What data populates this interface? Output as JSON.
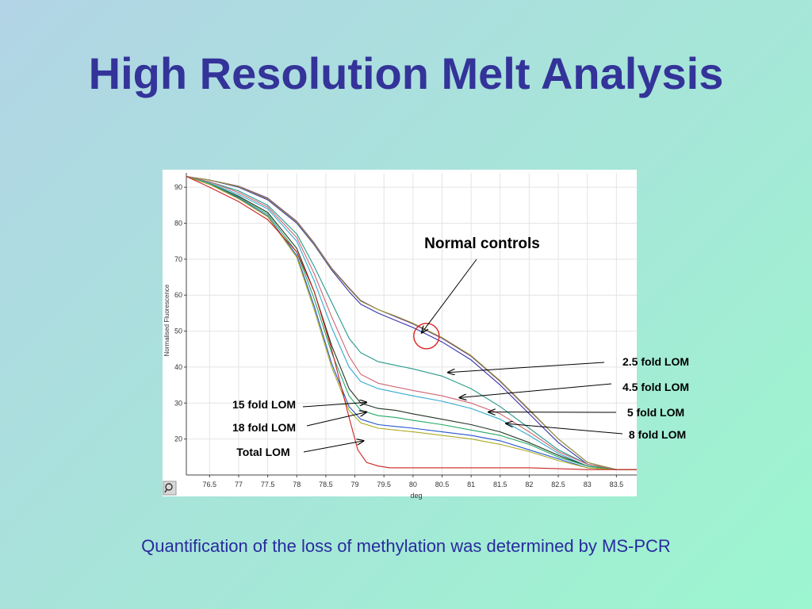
{
  "slide": {
    "title": "High Resolution Melt Analysis",
    "caption": "Quantification of the loss of methylation was determined by MS-PCR"
  },
  "chart_data": {
    "type": "line",
    "ylabel": "Normalised Fluorescence",
    "xlabel": "deg",
    "xlim": [
      76.1,
      83.85
    ],
    "ylim": [
      10,
      94
    ],
    "xticks": [
      76.5,
      77,
      77.5,
      78,
      78.5,
      79,
      79.5,
      80,
      80.5,
      81,
      81.5,
      82,
      82.5,
      83,
      83.5
    ],
    "yticks": [
      20,
      30,
      40,
      50,
      60,
      70,
      80,
      90
    ],
    "grid": true,
    "series": [
      {
        "color": "#3333aa",
        "x": [
          76.1,
          76.5,
          77,
          77.5,
          78,
          78.3,
          78.6,
          78.9,
          79.1,
          79.4,
          79.7,
          80,
          80.5,
          81,
          81.5,
          82,
          82.5,
          83,
          83.5,
          83.85
        ],
        "y": [
          93,
          92,
          90,
          86.5,
          80,
          74,
          67,
          61,
          57.5,
          55,
          53,
          51,
          47,
          42,
          35,
          27,
          19,
          13,
          11.5,
          11.5
        ]
      },
      {
        "color": "#663399",
        "x": [
          76.1,
          76.5,
          77,
          77.5,
          78,
          78.3,
          78.6,
          78.9,
          79.1,
          79.4,
          79.7,
          80,
          80.5,
          81,
          81.5,
          82,
          82.5,
          83,
          83.5,
          83.85
        ],
        "y": [
          93,
          92,
          90.3,
          87,
          80.5,
          74.5,
          67.5,
          62,
          58.5,
          56,
          54,
          52,
          48,
          43,
          36,
          28,
          20,
          13.5,
          11.5,
          11.5
        ]
      },
      {
        "color": "#999933",
        "x": [
          76.1,
          76.5,
          77,
          77.5,
          78,
          78.3,
          78.6,
          78.9,
          79.1,
          79.4,
          79.7,
          80,
          80.5,
          81,
          81.5,
          82,
          82.5,
          83,
          83.5,
          83.85
        ],
        "y": [
          93,
          92,
          90.2,
          86.8,
          80.3,
          74.3,
          67.3,
          61.8,
          58.3,
          56,
          54.2,
          52.2,
          48.2,
          43.2,
          36.2,
          28.2,
          20,
          13.5,
          11.5,
          11.5
        ]
      },
      {
        "color": "#2a9a8a",
        "x": [
          76.1,
          76.5,
          77,
          77.5,
          78,
          78.3,
          78.6,
          78.9,
          79.1,
          79.4,
          79.7,
          80,
          80.5,
          81,
          81.5,
          82,
          82.5,
          83,
          83.5,
          83.85
        ],
        "y": [
          93,
          91.5,
          89,
          85,
          77,
          68,
          58,
          48,
          44,
          41.5,
          40.5,
          39.5,
          37.5,
          34,
          29,
          23,
          17,
          13,
          11.5,
          11.5
        ]
      },
      {
        "color": "#cc6677",
        "x": [
          76.1,
          76.5,
          77,
          77.5,
          78,
          78.3,
          78.6,
          78.9,
          79.1,
          79.4,
          79.7,
          80,
          80.5,
          81,
          81.5,
          82,
          82.5,
          83,
          83.5,
          83.85
        ],
        "y": [
          93,
          91.5,
          88.5,
          84.5,
          76,
          66,
          54,
          43,
          38,
          35.5,
          34.5,
          33.5,
          32,
          30,
          27,
          22,
          16.5,
          13,
          11.5,
          11.5
        ]
      },
      {
        "color": "#33aacc",
        "x": [
          76.1,
          76.5,
          77,
          77.5,
          78,
          78.3,
          78.6,
          78.9,
          79.1,
          79.4,
          79.7,
          80,
          80.5,
          81,
          81.5,
          82,
          82.5,
          83,
          83.5,
          83.85
        ],
        "y": [
          93,
          91.2,
          88,
          84,
          75,
          64,
          51,
          40,
          36,
          34,
          33,
          32,
          30.5,
          28.5,
          25.5,
          21,
          16,
          12.5,
          11.5,
          11.5
        ]
      },
      {
        "color": "#223322",
        "x": [
          76.1,
          76.5,
          77,
          77.5,
          78,
          78.3,
          78.6,
          78.9,
          79.1,
          79.4,
          79.7,
          80,
          80.5,
          81,
          81.5,
          82,
          82.5,
          83,
          83.5,
          83.85
        ],
        "y": [
          93,
          91,
          87.5,
          83,
          73,
          61,
          46,
          34,
          30,
          28.5,
          28,
          27,
          25.5,
          24,
          22,
          19,
          15.5,
          12.5,
          11.5,
          11.5
        ]
      },
      {
        "color": "#22aa66",
        "x": [
          76.1,
          76.5,
          77,
          77.5,
          78,
          78.3,
          78.6,
          78.9,
          79.1,
          79.4,
          79.7,
          80,
          80.5,
          81,
          81.5,
          82,
          82.5,
          83,
          83.5,
          83.85
        ],
        "y": [
          93,
          91,
          87.2,
          82.5,
          72,
          59,
          44,
          32,
          28,
          26.5,
          26,
          25.2,
          24,
          22.5,
          21,
          18.5,
          15,
          12.5,
          11.5,
          11.5
        ]
      },
      {
        "color": "#2255cc",
        "x": [
          76.1,
          76.5,
          77,
          77.5,
          78,
          78.3,
          78.6,
          78.9,
          79.1,
          79.4,
          79.7,
          80,
          80.5,
          81,
          81.5,
          82,
          82.5,
          83,
          83.5,
          83.85
        ],
        "y": [
          93,
          90.8,
          87,
          82,
          71,
          57,
          41,
          29,
          25.5,
          24,
          23.5,
          23,
          22,
          21,
          19.5,
          17,
          14.5,
          12,
          11.5,
          11.5
        ]
      },
      {
        "color": "#aaaa22",
        "x": [
          76.1,
          76.5,
          77,
          77.5,
          78,
          78.3,
          78.6,
          78.9,
          79.1,
          79.4,
          79.7,
          80,
          80.5,
          81,
          81.5,
          82,
          82.5,
          83,
          83.5,
          83.85
        ],
        "y": [
          93,
          90.8,
          86.8,
          81.8,
          70.5,
          56,
          40,
          28,
          24.5,
          23,
          22.5,
          22,
          21,
          20,
          18.5,
          16.5,
          14,
          12,
          11.5,
          11.5
        ]
      },
      {
        "color": "#cc2222",
        "x": [
          76.1,
          76.5,
          77,
          77.5,
          78,
          78.3,
          78.6,
          78.9,
          79.05,
          79.2,
          79.4,
          79.6,
          80,
          80.5,
          81,
          82,
          83,
          83.5,
          83.85
        ],
        "y": [
          93,
          90,
          86,
          81,
          72,
          61,
          45,
          26,
          17,
          13.5,
          12.5,
          12,
          12,
          12,
          12,
          12,
          11.5,
          11.5,
          11.5
        ]
      }
    ],
    "annotations": [
      {
        "text": "Normal controls",
        "target": [
          80.15,
          49.5
        ]
      },
      {
        "text": "2.5 fold LOM",
        "target": [
          80.6,
          38.5
        ]
      },
      {
        "text": "4.5 fold LOM",
        "target": [
          80.8,
          31.5
        ]
      },
      {
        "text": "5 fold LOM",
        "target": [
          81.3,
          27.5
        ]
      },
      {
        "text": "8 fold LOM",
        "target": [
          81.6,
          24.3
        ]
      },
      {
        "text": "15 fold LOM",
        "target": [
          79.2,
          30.2
        ]
      },
      {
        "text": "18 fold LOM",
        "target": [
          79.2,
          27.5
        ]
      },
      {
        "text": "Total LOM",
        "target": [
          79.15,
          19.5
        ]
      }
    ]
  }
}
